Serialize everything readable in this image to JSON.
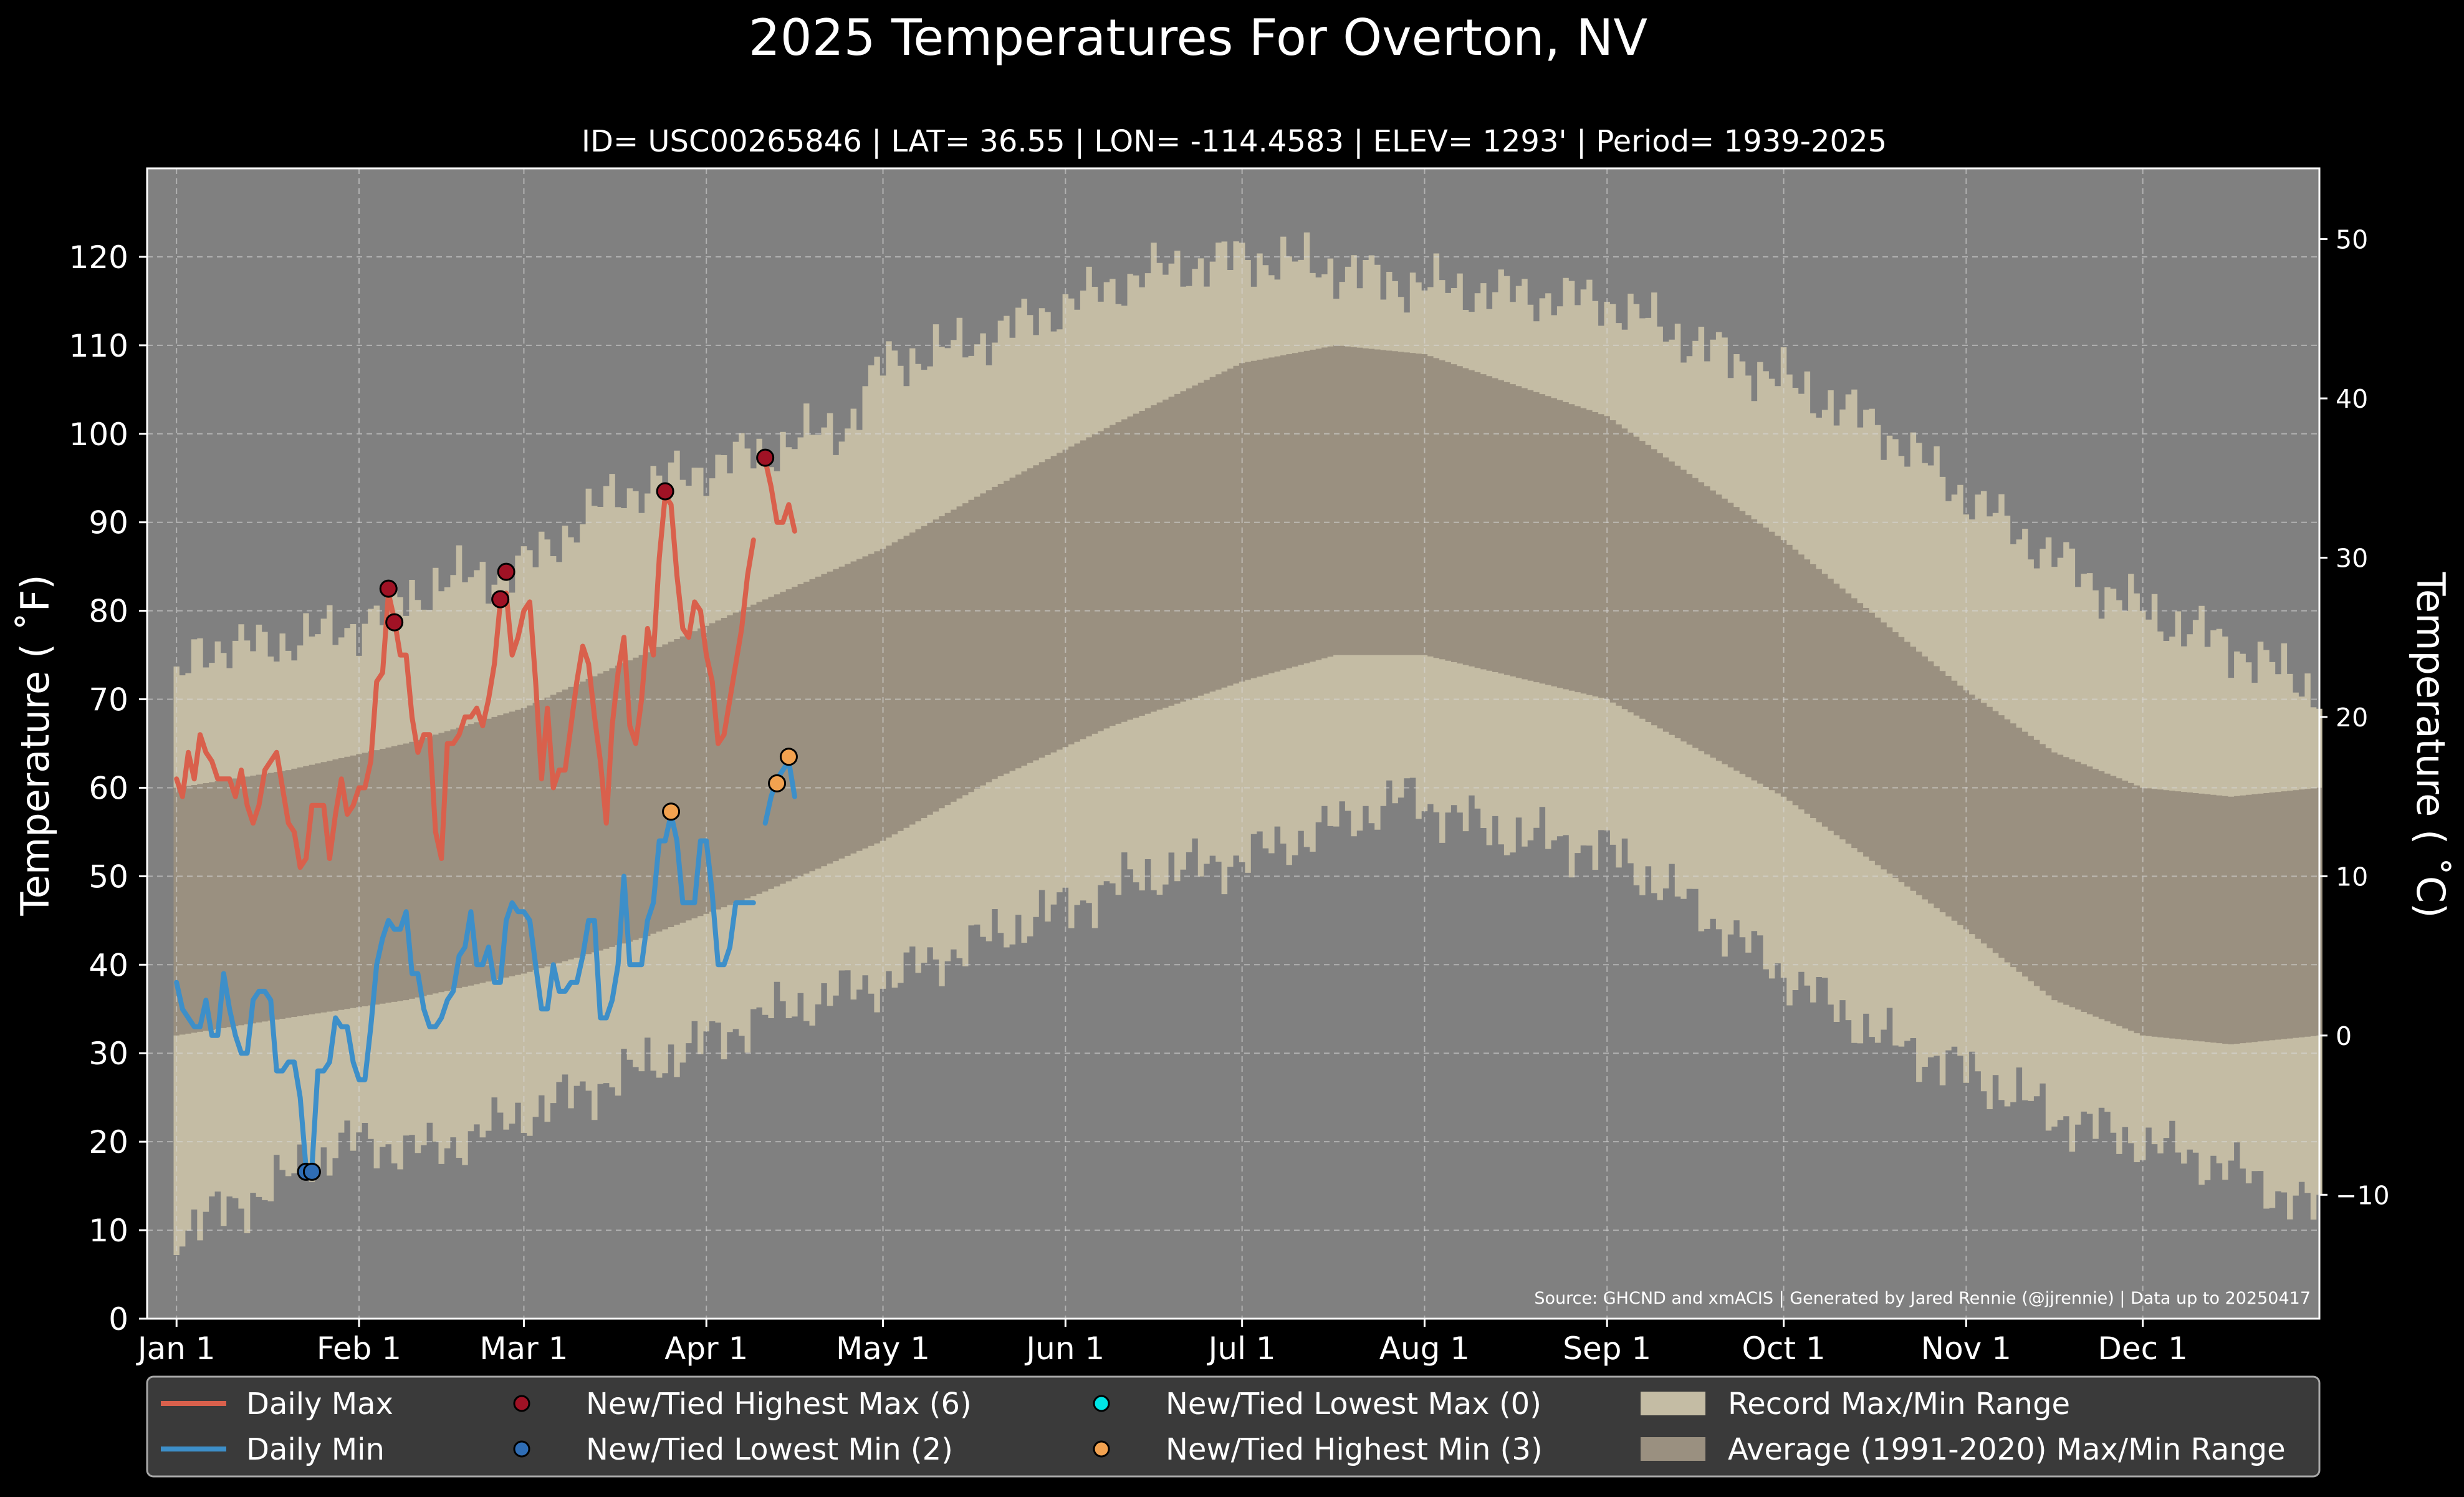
{
  "chart_data": {
    "type": "line",
    "title": "2025 Temperatures For Overton, NV",
    "subtitle": "ID= USC00265846 | LAT= 36.55 | LON= -114.4583 | ELEV= 1293' | Period= 1939-2025",
    "ylabel": "Temperature ($^\\circ$F)",
    "ylabel_display": "Temperature ( ˚F)",
    "y2label_display": "Temperature ( ˚C)",
    "source": "Source: GHCND and xmACIS | Generated by Jared Rennie (@jjrennie) | Data up to 20250417",
    "ylim": [
      0,
      130
    ],
    "yticks": [
      0,
      10,
      20,
      30,
      40,
      50,
      60,
      70,
      80,
      90,
      100,
      110,
      120
    ],
    "y2ticks": [
      -10,
      0,
      10,
      20,
      30,
      40,
      50
    ],
    "xlim_doy": [
      -4,
      365
    ],
    "months": [
      "Jan 1",
      "Feb 1",
      "Mar 1",
      "Apr 1",
      "May 1",
      "Jun 1",
      "Jul 1",
      "Aug 1",
      "Sep 1",
      "Oct 1",
      "Nov 1",
      "Dec 1"
    ],
    "month_start_doy": [
      1,
      32,
      60,
      91,
      121,
      152,
      182,
      213,
      244,
      274,
      305,
      335
    ],
    "grid": true,
    "legend_position": "bottom",
    "colors": {
      "daily_max": "#d9604c",
      "daily_min": "#3d8fc9",
      "record_range": "#c4bca4",
      "average_range": "#9a9080",
      "plot_background": "#808080",
      "highest_max_marker": "#a01225",
      "lowest_min_marker": "#2f6db5",
      "lowest_max_marker": "#00e5e5",
      "highest_min_marker": "#f2a250"
    },
    "record_max_anchors": {
      "doy": [
        1,
        5,
        15,
        30,
        45,
        60,
        75,
        90,
        100,
        115,
        121,
        135,
        150,
        165,
        182,
        195,
        210,
        225,
        244,
        260,
        274,
        290,
        305,
        320,
        335,
        350,
        365
      ],
      "values": [
        71,
        76,
        76,
        78,
        83,
        85,
        93,
        96,
        98,
        101,
        108,
        110,
        114,
        118,
        120,
        119,
        117,
        116,
        115,
        110,
        106,
        101,
        93,
        86,
        80,
        76,
        71
      ]
    },
    "record_min_anchors": {
      "doy": [
        1,
        5,
        15,
        30,
        45,
        60,
        75,
        90,
        100,
        115,
        121,
        135,
        150,
        165,
        182,
        195,
        210,
        225,
        244,
        260,
        274,
        290,
        305,
        320,
        335,
        350,
        365
      ],
      "values": [
        10,
        11,
        14,
        20,
        19,
        23,
        27,
        31,
        34,
        37,
        38,
        42,
        46,
        50,
        52,
        55,
        59,
        55,
        53,
        46,
        39,
        32,
        28,
        23,
        20,
        17,
        12
      ]
    },
    "average_max_anchors": {
      "doy": [
        1,
        20,
        40,
        60,
        80,
        100,
        121,
        140,
        160,
        182,
        198,
        213,
        244,
        274,
        305,
        320,
        335,
        350,
        365
      ],
      "values": [
        60,
        62,
        65,
        69,
        75,
        81,
        87,
        94,
        101,
        108,
        110,
        109,
        102,
        88,
        71,
        64,
        60,
        59,
        60
      ]
    },
    "average_min_anchors": {
      "doy": [
        1,
        20,
        40,
        60,
        80,
        100,
        121,
        140,
        160,
        182,
        198,
        213,
        244,
        274,
        305,
        320,
        335,
        350,
        365
      ],
      "values": [
        32,
        34,
        36,
        39,
        43,
        48,
        54,
        61,
        67,
        72,
        75,
        75,
        70,
        59,
        44,
        36,
        32,
        31,
        32
      ]
    },
    "series": [
      {
        "name": "Daily Max",
        "color": "#d9604c",
        "segments": [
          {
            "start_doy": 1,
            "values": [
              61,
              59,
              64,
              61,
              66,
              64,
              63,
              61,
              61,
              61,
              59,
              62,
              58,
              56,
              58,
              62,
              63,
              64,
              60,
              56,
              55,
              51,
              52,
              58,
              58,
              58,
              52,
              57,
              61,
              57,
              58,
              60,
              60,
              63,
              72,
              73,
              82,
              79,
              75,
              75,
              68,
              64,
              66,
              66,
              55,
              52,
              65,
              65,
              66,
              68,
              68,
              69,
              67,
              70,
              74,
              81,
              82,
              75,
              77,
              80,
              81,
              72,
              61,
              69,
              60,
              62,
              62,
              67,
              72,
              76,
              74,
              68,
              63,
              56,
              67,
              73,
              77,
              67,
              65,
              70,
              78,
              75,
              86,
              93,
              92,
              84,
              78,
              77,
              81,
              80,
              75,
              72,
              65,
              66,
              70,
              74,
              78,
              84,
              88
            ]
          },
          {
            "start_doy": 101,
            "values": [
              97,
              94,
              90,
              90,
              92,
              89
            ]
          }
        ]
      },
      {
        "name": "Daily Min",
        "color": "#3d8fc9",
        "segments": [
          {
            "start_doy": 1,
            "values": [
              38,
              35,
              34,
              33,
              33,
              36,
              32,
              32,
              39,
              35,
              32,
              30,
              30,
              36,
              37,
              37,
              36,
              28,
              28,
              29,
              29,
              25,
              17,
              17,
              28,
              28,
              29,
              34,
              33,
              33,
              29,
              27,
              27,
              33,
              40,
              43,
              45,
              44,
              44,
              46,
              39,
              39,
              35,
              33,
              33,
              34,
              36,
              37,
              41,
              42,
              46,
              40,
              40,
              42,
              38,
              38,
              45,
              47,
              46,
              46,
              45,
              40,
              35,
              35,
              40,
              37,
              37,
              38,
              38,
              41,
              45,
              45,
              34,
              34,
              36,
              40,
              50,
              40,
              40,
              40,
              45,
              47,
              54,
              54,
              57,
              54,
              47,
              47,
              47,
              54,
              54,
              48,
              40,
              40,
              42,
              47,
              47,
              47,
              47
            ]
          },
          {
            "start_doy": 101,
            "values": [
              56,
              59,
              61,
              62,
              63,
              59
            ]
          }
        ]
      }
    ],
    "markers": [
      {
        "group": "highest_max",
        "doy": 37,
        "value": 82.5
      },
      {
        "group": "highest_max",
        "doy": 38,
        "value": 78.7
      },
      {
        "group": "highest_max",
        "doy": 56,
        "value": 81.3
      },
      {
        "group": "highest_max",
        "doy": 57,
        "value": 84.4
      },
      {
        "group": "highest_max",
        "doy": 84,
        "value": 93.5
      },
      {
        "group": "highest_max",
        "doy": 101,
        "value": 97.3
      },
      {
        "group": "lowest_min",
        "doy": 23,
        "value": 16.6
      },
      {
        "group": "lowest_min",
        "doy": 24,
        "value": 16.6
      },
      {
        "group": "highest_min",
        "doy": 85,
        "value": 57.3
      },
      {
        "group": "highest_min",
        "doy": 103,
        "value": 60.5
      },
      {
        "group": "highest_min",
        "doy": 105,
        "value": 63.5
      }
    ],
    "legend": [
      {
        "type": "line",
        "label": "Daily Max",
        "color": "#d9604c"
      },
      {
        "type": "line",
        "label": "Daily Min",
        "color": "#3d8fc9"
      },
      {
        "type": "marker",
        "label": "New/Tied Highest Max (6)",
        "color": "#a01225"
      },
      {
        "type": "marker",
        "label": "New/Tied Lowest Min (2)",
        "color": "#2f6db5"
      },
      {
        "type": "marker",
        "label": "New/Tied Lowest Max (0)",
        "color": "#00e5e5"
      },
      {
        "type": "marker",
        "label": "New/Tied Highest Min (3)",
        "color": "#f2a250"
      },
      {
        "type": "patch",
        "label": "Record Max/Min Range",
        "color": "#c4bca4"
      },
      {
        "type": "patch",
        "label": "Average (1991-2020) Max/Min Range",
        "color": "#9a9080"
      }
    ]
  }
}
